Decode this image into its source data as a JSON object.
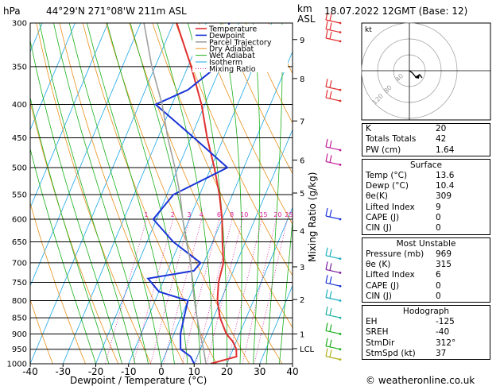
{
  "header": {
    "pressure_unit": "hPa",
    "location": "44°29'N  271°08'W  211m  ASL",
    "height_unit": "km",
    "height_ref": "ASL",
    "datetime": "18.07.2022  12GMT  (Base: 12)"
  },
  "footer": {
    "copyright": "© weatheronline.co.uk"
  },
  "colors": {
    "temperature": "#e03030",
    "dewpoint": "#1a35d8",
    "parcel": "#a0a0a0",
    "dry_adiabat": "#e8901a",
    "wet_adiabat": "#19b019",
    "isotherm": "#1aa6e6",
    "mixing_ratio": "#d81a9a"
  },
  "chart_data": {
    "type": "line",
    "title": "",
    "xlabel": "Dewpoint / Temperature (°C)",
    "ylabel": "hPa",
    "y2label": "Mixing Ratio (g/kg)",
    "xlim": [
      -40,
      40
    ],
    "ylim": [
      1000,
      300
    ],
    "y_scale": "log",
    "x_ticks": [
      -40,
      -30,
      -20,
      -10,
      0,
      10,
      20,
      30,
      40
    ],
    "pressure_levels": [
      300,
      350,
      400,
      450,
      500,
      550,
      600,
      650,
      700,
      750,
      800,
      850,
      900,
      950,
      1000
    ],
    "height_ticks": [
      {
        "km": "9",
        "p": 318
      },
      {
        "km": "8",
        "p": 365
      },
      {
        "km": "7",
        "p": 424
      },
      {
        "km": "6",
        "p": 487
      },
      {
        "km": "5",
        "p": 547
      },
      {
        "km": "4",
        "p": 625
      },
      {
        "km": "3",
        "p": 710
      },
      {
        "km": "2",
        "p": 797
      },
      {
        "km": "1",
        "p": 900
      },
      {
        "km": "LCL",
        "p": 948
      }
    ],
    "mixing_ratio_labels": [
      "1",
      "2",
      "3",
      "4",
      "6",
      "8",
      "10",
      "15",
      "20",
      "25"
    ],
    "mixing_ratio_values": [
      1,
      2,
      3,
      4,
      6,
      8,
      10,
      15,
      20,
      25
    ],
    "legend": [
      "Temperature",
      "Dewpoint",
      "Parcel Trajectory",
      "Dry Adiabat",
      "Wet Adiabat",
      "Isotherm",
      "Mixing Ratio"
    ],
    "legend_position": "top",
    "series": [
      {
        "name": "Temperature",
        "points": [
          {
            "p": 1000,
            "t": 15
          },
          {
            "p": 975,
            "t": 22
          },
          {
            "p": 950,
            "t": 21
          },
          {
            "p": 925,
            "t": 19
          },
          {
            "p": 900,
            "t": 16
          },
          {
            "p": 850,
            "t": 12
          },
          {
            "p": 800,
            "t": 9
          },
          {
            "p": 750,
            "t": 7
          },
          {
            "p": 700,
            "t": 6
          },
          {
            "p": 650,
            "t": 3
          },
          {
            "p": 600,
            "t": 0
          },
          {
            "p": 550,
            "t": -4
          },
          {
            "p": 500,
            "t": -9
          },
          {
            "p": 450,
            "t": -15
          },
          {
            "p": 400,
            "t": -21
          },
          {
            "p": 350,
            "t": -29
          },
          {
            "p": 300,
            "t": -39
          }
        ]
      },
      {
        "name": "Dewpoint",
        "points": [
          {
            "p": 1000,
            "t": 10
          },
          {
            "p": 975,
            "t": 8
          },
          {
            "p": 950,
            "t": 4
          },
          {
            "p": 900,
            "t": 2
          },
          {
            "p": 850,
            "t": 1
          },
          {
            "p": 800,
            "t": 0
          },
          {
            "p": 775,
            "t": -10
          },
          {
            "p": 740,
            "t": -15
          },
          {
            "p": 720,
            "t": -2
          },
          {
            "p": 700,
            "t": -1
          },
          {
            "p": 650,
            "t": -12
          },
          {
            "p": 600,
            "t": -21
          },
          {
            "p": 550,
            "t": -18
          },
          {
            "p": 500,
            "t": -5
          },
          {
            "p": 450,
            "t": -19
          },
          {
            "p": 400,
            "t": -35
          },
          {
            "p": 380,
            "t": -27
          },
          {
            "p": 330,
            "t": -17
          },
          {
            "p": 315,
            "t": -22
          },
          {
            "p": 300,
            "t": -23
          }
        ]
      },
      {
        "name": "Parcel Trajectory",
        "points": [
          {
            "p": 1000,
            "t": 13.6
          },
          {
            "p": 950,
            "t": 11
          },
          {
            "p": 900,
            "t": 8
          },
          {
            "p": 850,
            "t": 5
          },
          {
            "p": 800,
            "t": 2
          },
          {
            "p": 750,
            "t": -1
          },
          {
            "p": 700,
            "t": -4
          },
          {
            "p": 650,
            "t": -8
          },
          {
            "p": 600,
            "t": -12
          },
          {
            "p": 550,
            "t": -16
          },
          {
            "p": 500,
            "t": -21
          },
          {
            "p": 450,
            "t": -27
          },
          {
            "p": 400,
            "t": -33
          },
          {
            "p": 350,
            "t": -41
          },
          {
            "p": 300,
            "t": -49
          }
        ]
      }
    ]
  },
  "indices": {
    "k_label": "K",
    "k_value": "20",
    "tt_label": "Totals Totals",
    "tt_value": "42",
    "pw_label": "PW (cm)",
    "pw_value": "1.64",
    "surface": {
      "title": "Surface",
      "temp_label": "Temp (°C)",
      "temp_value": "13.6",
      "dewp_label": "Dewp (°C)",
      "dewp_value": "10.4",
      "thetae_label": "θe(K)",
      "thetae_value": "309",
      "li_label": "Lifted Index",
      "li_value": "9",
      "cape_label": "CAPE (J)",
      "cape_value": "0",
      "cin_label": "CIN (J)",
      "cin_value": "0"
    },
    "most_unstable": {
      "title": "Most Unstable",
      "pressure_label": "Pressure (mb)",
      "pressure_value": "969",
      "thetae_label": "θe (K)",
      "thetae_value": "315",
      "li_label": "Lifted Index",
      "li_value": "6",
      "cape_label": "CAPE (J)",
      "cape_value": "0",
      "cin_label": "CIN (J)",
      "cin_value": "0"
    },
    "hodograph": {
      "title": "Hodograph",
      "eh_label": "EH",
      "eh_value": "-125",
      "sreh_label": "SREH",
      "sreh_value": "-40",
      "stmdir_label": "StmDir",
      "stmdir_value": "312°",
      "stmspd_label": "StmSpd (kt)",
      "stmspd_value": "37"
    }
  },
  "hodograph_plot": {
    "unit_label": "kt",
    "ring_labels": [
      "120",
      "80",
      "40"
    ]
  }
}
